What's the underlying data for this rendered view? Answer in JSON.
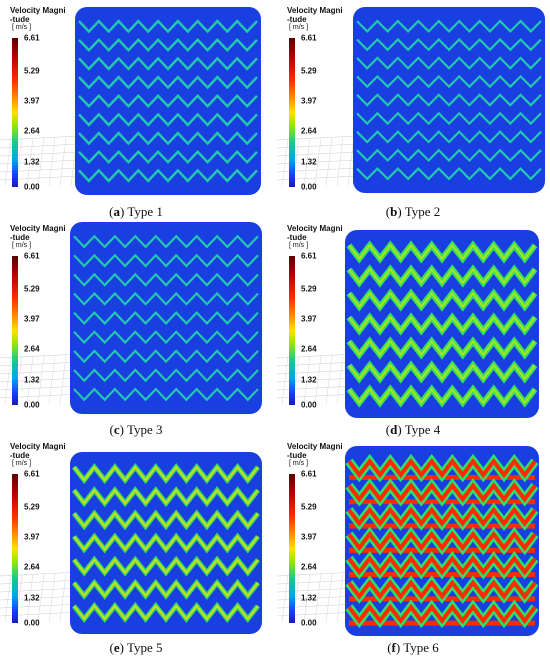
{
  "legend": {
    "title_line1": "Velocity Magni",
    "title_line2": "-tude",
    "unit": "[ m/s ]",
    "ticks": [
      "6.61",
      "5.29",
      "3.97",
      "2.64",
      "1.32",
      "0.00"
    ]
  },
  "panels": [
    {
      "letter": "(a)",
      "label": "Type 1"
    },
    {
      "letter": "(b)",
      "label": "Type 2"
    },
    {
      "letter": "(c)",
      "label": "Type 3"
    },
    {
      "letter": "(d)",
      "label": "Type 4"
    },
    {
      "letter": "(e)",
      "label": "Type 5"
    },
    {
      "letter": "(f)",
      "label": "Type 6"
    }
  ],
  "colors": {
    "background_flow": "#1a3fe0",
    "low_channel": "#22c7b0",
    "mid_channel": "#a6e620",
    "high_channel": "#ff2a00"
  }
}
